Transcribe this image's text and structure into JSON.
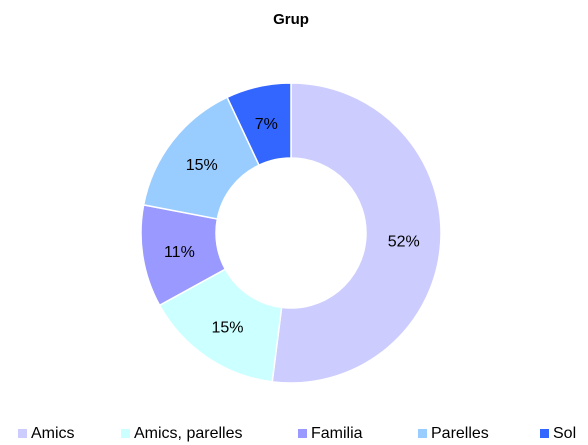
{
  "chart_data": {
    "type": "donut",
    "title": "Grup",
    "categories": [
      "Amics",
      "Amics, parelles",
      "Familia",
      "Parelles",
      "Sol"
    ],
    "values": [
      52,
      15,
      11,
      15,
      7
    ],
    "value_labels": [
      "52%",
      "15%",
      "11%",
      "15%",
      "7%"
    ],
    "colors": [
      "#ccccff",
      "#ccffff",
      "#9999ff",
      "#99ccff",
      "#3366ff"
    ],
    "legend": "bottom"
  }
}
